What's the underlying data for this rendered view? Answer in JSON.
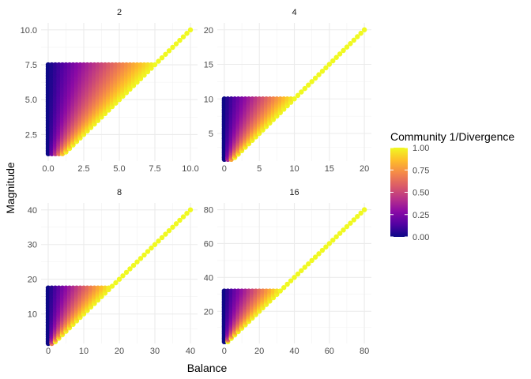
{
  "chart_data": {
    "type": "scatter",
    "title": "",
    "xlabel": "Balance",
    "ylabel": "Magnitude",
    "legend": {
      "title": "Community 1/Divergence",
      "position": "right",
      "ticks": [
        "0.00",
        "0.25",
        "0.50",
        "0.75",
        "1.00"
      ],
      "tick_values": [
        0,
        0.25,
        0.5,
        0.75,
        1.0
      ],
      "palette": [
        "#0d0887",
        "#5302a3",
        "#8b0aa5",
        "#b83289",
        "#db5c68",
        "#f48849",
        "#febd2a",
        "#f0f921"
      ]
    },
    "grid": true,
    "facets": [
      {
        "label": "2",
        "n": 2,
        "xlim": [
          -0.5,
          10.5
        ],
        "ylim": [
          0.6,
          10.5
        ],
        "xticks": [
          0,
          2.5,
          5,
          7.5,
          10
        ],
        "xtick_labels": [
          "0.0",
          "2.5",
          "5.0",
          "7.5",
          "10.0"
        ],
        "yticks": [
          2.5,
          5,
          7.5,
          10
        ],
        "ytick_labels": [
          "2.5",
          "5.0",
          "7.5",
          "10.0"
        ],
        "cluster_top": 7.5,
        "x_step": 0.25,
        "x_max": 10
      },
      {
        "label": "4",
        "n": 4,
        "xlim": [
          -1,
          21
        ],
        "ylim": [
          1,
          21
        ],
        "xticks": [
          0,
          5,
          10,
          15,
          20
        ],
        "xtick_labels": [
          "0",
          "5",
          "10",
          "15",
          "20"
        ],
        "yticks": [
          5,
          10,
          15,
          20
        ],
        "ytick_labels": [
          "5",
          "10",
          "15",
          "20"
        ],
        "cluster_top": 10,
        "x_step": 0.5,
        "x_max": 20
      },
      {
        "label": "8",
        "n": 8,
        "xlim": [
          -2,
          42
        ],
        "ylim": [
          1.5,
          42
        ],
        "xticks": [
          0,
          10,
          20,
          30,
          40
        ],
        "xtick_labels": [
          "0",
          "10",
          "20",
          "30",
          "40"
        ],
        "yticks": [
          10,
          20,
          30,
          40
        ],
        "ytick_labels": [
          "10",
          "20",
          "30",
          "40"
        ],
        "cluster_top": 17.5,
        "x_step": 1,
        "x_max": 40
      },
      {
        "label": "16",
        "n": 16,
        "xlim": [
          -4,
          84
        ],
        "ylim": [
          1,
          84
        ],
        "xticks": [
          0,
          20,
          40,
          60,
          80
        ],
        "xtick_labels": [
          "0",
          "20",
          "40",
          "60",
          "80"
        ],
        "yticks": [
          20,
          40,
          60,
          80
        ],
        "ytick_labels": [
          "20",
          "40",
          "60",
          "80"
        ],
        "cluster_top": 32.5,
        "x_step": 2,
        "x_max": 80
      }
    ]
  }
}
